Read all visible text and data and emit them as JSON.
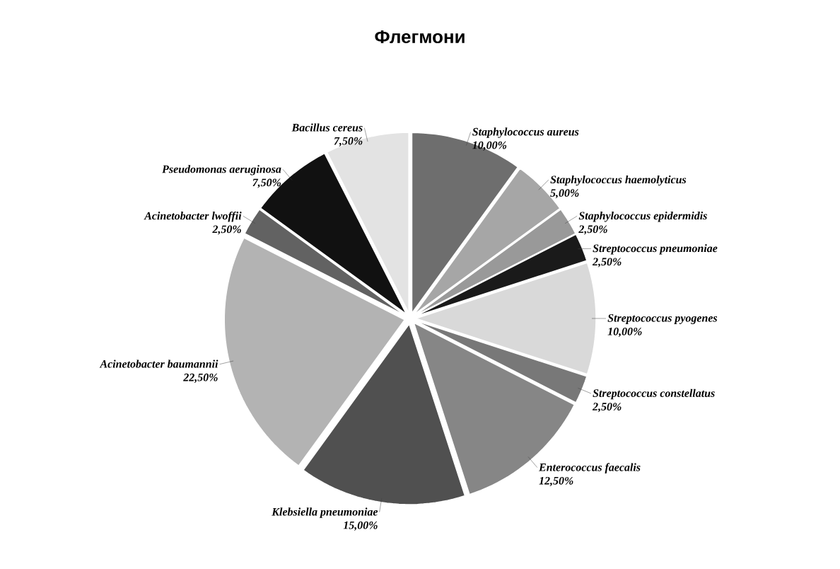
{
  "chart_data": {
    "type": "pie",
    "title": "Флегмони",
    "categories": [
      "Staphylococcus aureus",
      "Staphylococcus haemolyticus",
      "Staphylococcus epidermidis",
      "Streptococcus pneumoniae",
      "Streptococcus pyogenes",
      "Streptococcus constellatus",
      "Enterococcus faecalis",
      "Klebsiella pneumoniae",
      "Acinetobacter baumannii",
      "Acinetobacter lwoffii",
      "Pseudomonas aeruginosa",
      "Bacillus cereus"
    ],
    "values": [
      10,
      5,
      2.5,
      2.5,
      10,
      2.5,
      12.5,
      15,
      22.5,
      2.5,
      7.5,
      7.5
    ],
    "value_labels": [
      "10,00%",
      "5,00%",
      "2,50%",
      "2,50%",
      "10,00%",
      "2,50%",
      "12,50%",
      "15,00%",
      "22,50%",
      "2,50%",
      "7,50%",
      "7,50%"
    ],
    "colors": [
      "#6e6e6e",
      "#a6a6a6",
      "#999999",
      "#1a1a1a",
      "#d9d9d9",
      "#787878",
      "#868686",
      "#505050",
      "#b3b3b3",
      "#626262",
      "#111111",
      "#e3e3e3"
    ]
  }
}
